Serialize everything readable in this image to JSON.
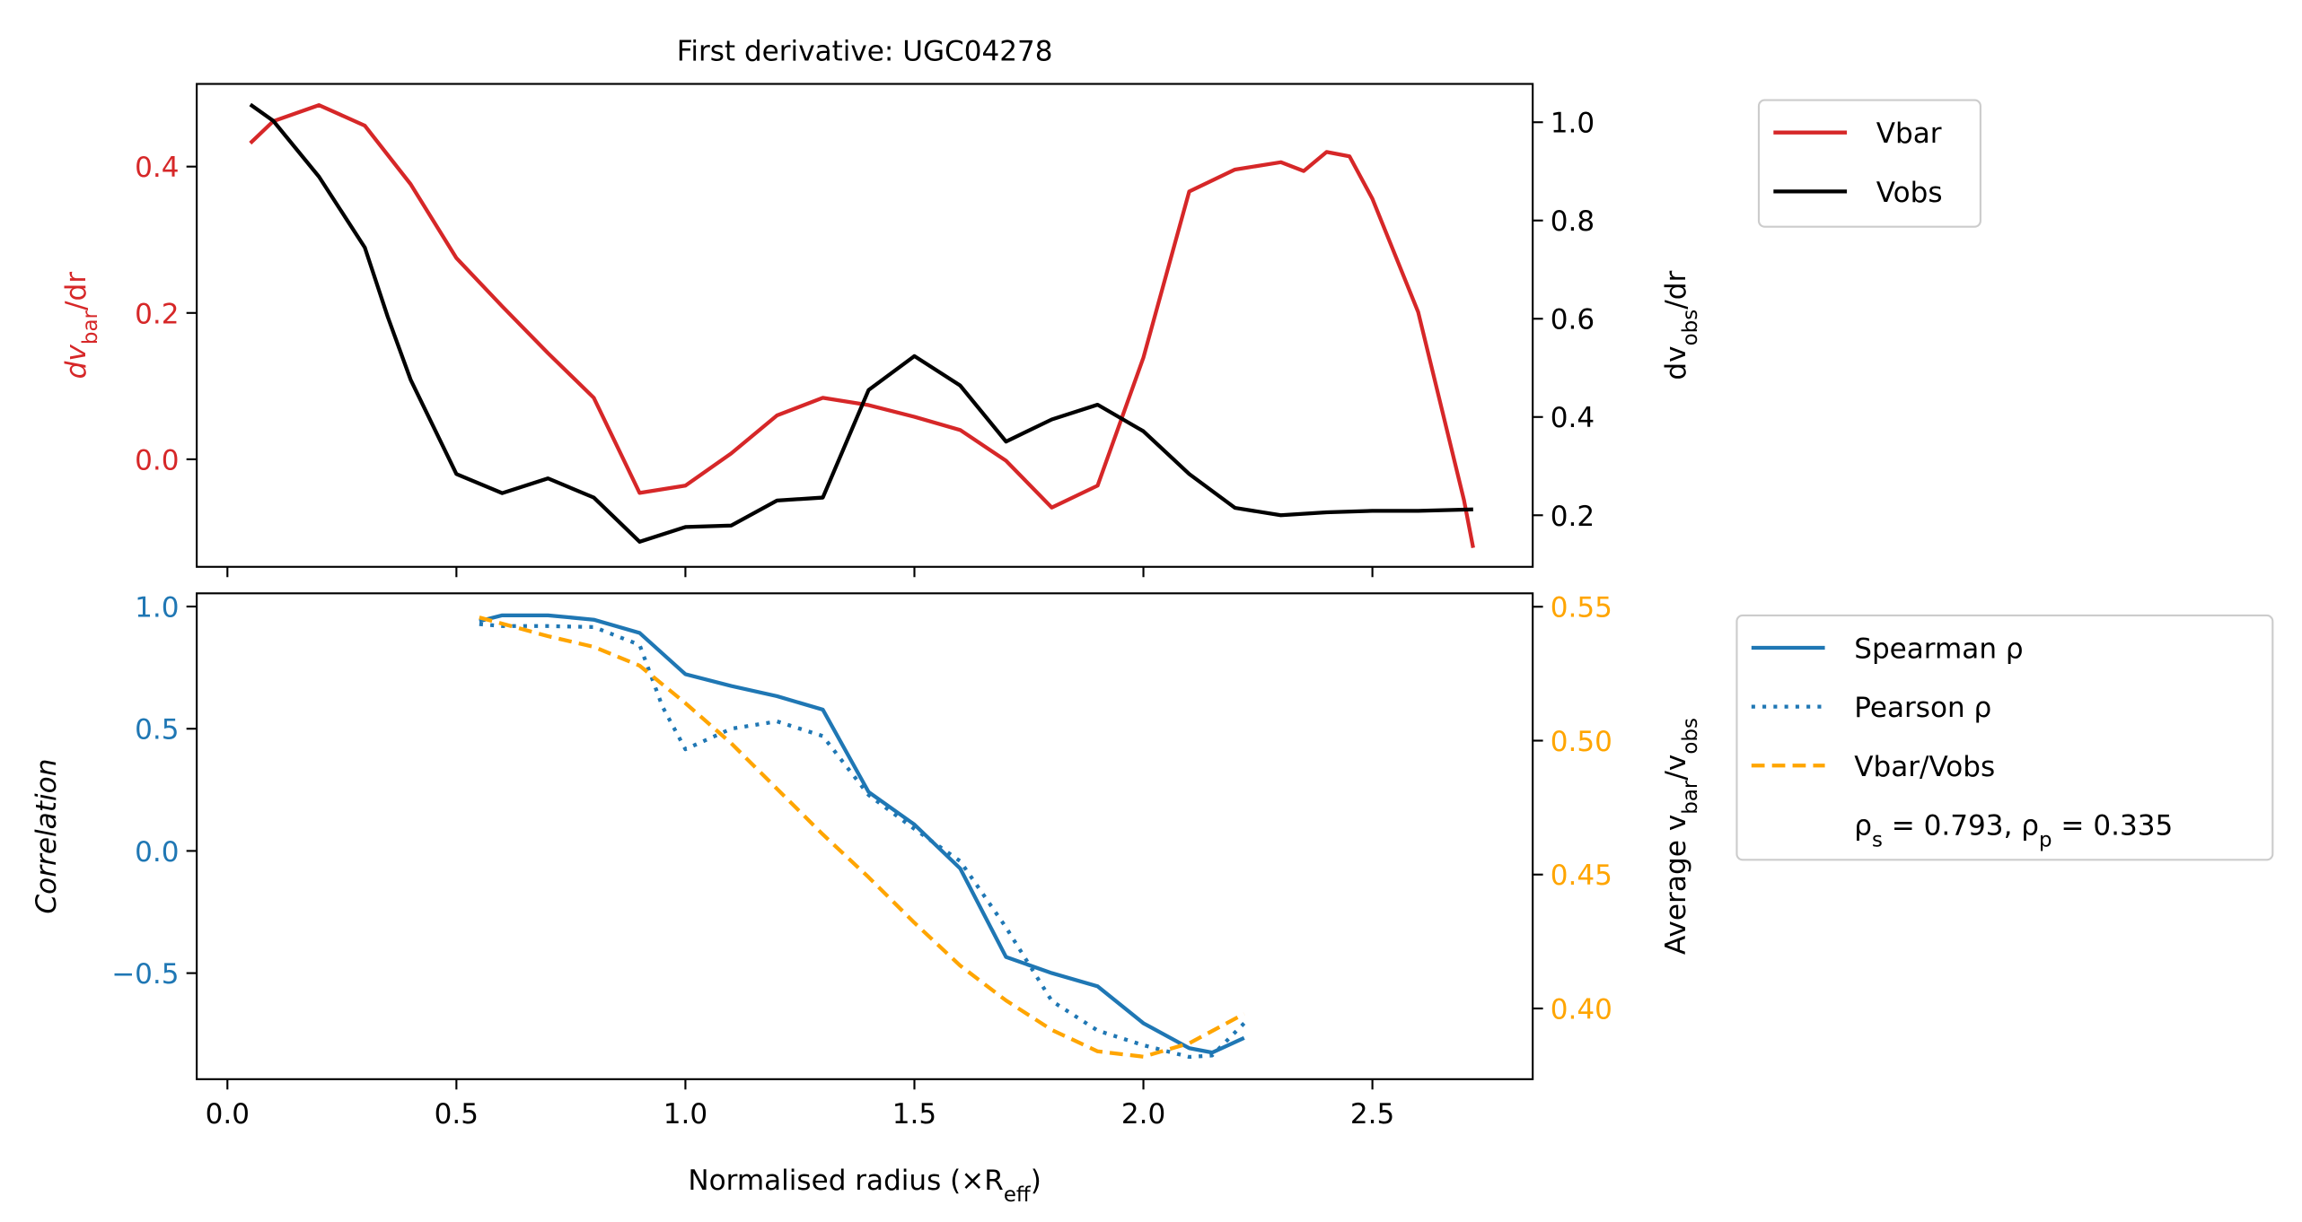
{
  "chart_data": [
    {
      "type": "line",
      "title": "First derivative: UGC04278",
      "ylabel": [
        "dv",
        "bar",
        "/dr"
      ],
      "y2label": [
        "dv",
        "obs",
        "/dr"
      ],
      "ycolor": "#d62728",
      "y2color": "#000000",
      "legend_position": "outside upper right",
      "xlim": [
        -0.067,
        2.85
      ],
      "xticks": [
        0,
        0.5,
        1,
        1.5,
        2,
        2.5
      ],
      "ylim": [
        -0.147,
        0.513
      ],
      "yticks": [
        {
          "value": 0,
          "label": "0.0"
        },
        0.2,
        0.4
      ],
      "y2lim": [
        0.095,
        1.078
      ],
      "y2ticks": [
        0.2,
        0.4,
        0.6,
        0.8,
        {
          "value": 1,
          "label": "1.0"
        }
      ],
      "series": [
        {
          "name": "Vbar",
          "color": "#d62728",
          "style": "solid",
          "x": [
            0.05,
            0.1,
            0.2,
            0.3,
            0.4,
            0.5,
            0.6,
            0.7,
            0.8,
            0.9,
            1.0,
            1.1,
            1.2,
            1.3,
            1.4,
            1.5,
            1.6,
            1.7,
            1.8,
            1.9,
            2.0,
            2.1,
            2.2,
            2.3,
            2.35,
            2.4,
            2.45,
            2.5,
            2.6,
            2.7,
            2.72
          ],
          "values": [
            0.432,
            0.462,
            0.484,
            0.456,
            0.376,
            0.275,
            0.209,
            0.145,
            0.084,
            -0.046,
            -0.036,
            0.008,
            0.06,
            0.084,
            0.074,
            0.058,
            0.04,
            -0.002,
            -0.066,
            -0.036,
            0.139,
            0.366,
            0.396,
            0.406,
            0.394,
            0.42,
            0.414,
            0.356,
            0.201,
            -0.056,
            -0.121
          ]
        },
        {
          "name": "Vobs",
          "color": "#000000",
          "style": "solid",
          "axis": "y2",
          "x": [
            0.05,
            0.1,
            0.2,
            0.3,
            0.35,
            0.4,
            0.5,
            0.6,
            0.7,
            0.8,
            0.9,
            1.0,
            1.1,
            1.2,
            1.3,
            1.4,
            1.5,
            1.6,
            1.7,
            1.8,
            1.9,
            2.0,
            2.1,
            2.2,
            2.3,
            2.4,
            2.5,
            2.6,
            2.72
          ],
          "values": [
            1.036,
            1.003,
            0.889,
            0.745,
            0.604,
            0.476,
            0.284,
            0.245,
            0.275,
            0.236,
            0.146,
            0.176,
            0.179,
            0.23,
            0.236,
            0.455,
            0.524,
            0.464,
            0.35,
            0.395,
            0.425,
            0.371,
            0.284,
            0.215,
            0.2,
            0.206,
            0.209,
            0.209,
            0.212
          ]
        }
      ]
    },
    {
      "type": "line",
      "xlabel": [
        "Normalised radius (×R",
        "eff",
        ")"
      ],
      "ylabel": [
        "Correlation"
      ],
      "y2label": [
        "Average v",
        "bar",
        "/v",
        "obs"
      ],
      "ycolor": "#1f77b4",
      "y2color": "#ffa500",
      "legend_position": "outside upper right",
      "legend_note": [
        "ρ",
        "s",
        " = 0.793, ρ",
        "p",
        " = 0.335"
      ],
      "xlim": [
        -0.067,
        2.85
      ],
      "xticks": [
        {
          "value": 0,
          "label": "0.0"
        },
        0.5,
        {
          "value": 1,
          "label": "1.0"
        },
        1.5,
        {
          "value": 2,
          "label": "2.0"
        },
        2.5
      ],
      "ylim": [
        -0.934,
        1.054
      ],
      "yticks": [
        {
          "value": -0.5,
          "label": "−0.5"
        },
        {
          "value": 0,
          "label": "0.0"
        },
        0.5,
        {
          "value": 1,
          "label": "1.0"
        }
      ],
      "y2lim": [
        0.3736,
        0.555
      ],
      "y2ticks": [
        {
          "value": 0.4,
          "label": "0.40"
        },
        0.45,
        {
          "value": 0.5,
          "label": "0.50"
        },
        0.55
      ],
      "series": [
        {
          "name": "Spearman ρ",
          "color": "#1f77b4",
          "style": "solid",
          "x": [
            0.55,
            0.6,
            0.7,
            0.8,
            0.9,
            1.0,
            1.1,
            1.2,
            1.3,
            1.4,
            1.5,
            1.6,
            1.7,
            1.8,
            1.9,
            2.0,
            2.1,
            2.15,
            2.22
          ],
          "values": [
            0.94,
            0.964,
            0.964,
            0.946,
            0.892,
            0.723,
            0.675,
            0.633,
            0.578,
            0.241,
            0.108,
            -0.072,
            -0.434,
            -0.5,
            -0.554,
            -0.705,
            -0.807,
            -0.825,
            -0.765
          ]
        },
        {
          "name": "Pearson ρ",
          "color": "#1f77b4",
          "style": "dotted",
          "x": [
            0.55,
            0.6,
            0.7,
            0.8,
            0.9,
            0.95,
            1.0,
            1.1,
            1.2,
            1.3,
            1.4,
            1.5,
            1.6,
            1.7,
            1.8,
            1.9,
            2.0,
            2.1,
            2.15,
            2.22
          ],
          "values": [
            0.928,
            0.92,
            0.92,
            0.916,
            0.843,
            0.59,
            0.416,
            0.5,
            0.53,
            0.47,
            0.229,
            0.09,
            -0.042,
            -0.313,
            -0.614,
            -0.735,
            -0.795,
            -0.843,
            -0.837,
            -0.705
          ]
        },
        {
          "name": "Vbar/Vobs",
          "color": "#ffa500",
          "style": "dashed",
          "axis": "y2",
          "x": [
            0.55,
            0.7,
            0.8,
            0.9,
            1.0,
            1.1,
            1.2,
            1.3,
            1.4,
            1.5,
            1.6,
            1.7,
            1.8,
            1.9,
            2.0,
            2.1,
            2.22
          ],
          "values": [
            0.546,
            0.539,
            0.535,
            0.528,
            0.514,
            0.499,
            0.482,
            0.465,
            0.449,
            0.432,
            0.416,
            0.403,
            0.392,
            0.384,
            0.382,
            0.387,
            0.398
          ]
        }
      ]
    }
  ]
}
